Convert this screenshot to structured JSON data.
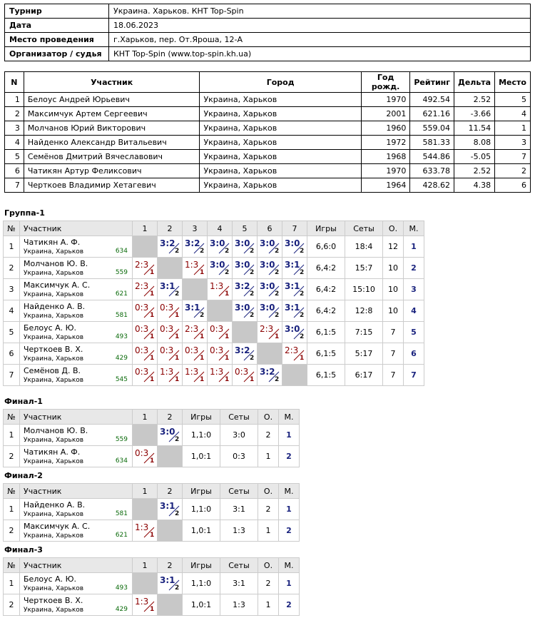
{
  "info": [
    {
      "label": "Турнир",
      "value": "Украина. Харьков. КНТ Top-Spin"
    },
    {
      "label": "Дата",
      "value": "18.06.2023"
    },
    {
      "label": "Место проведения",
      "value": "г.Харьков, пер. От.Яроша, 12-А"
    },
    {
      "label": "Организатор / судья",
      "value": "КНТ Top-Spin (www.top-spin.kh.ua)"
    }
  ],
  "participants": {
    "headers": [
      "N",
      "Участник",
      "Город",
      "Год рожд.",
      "Рейтинг",
      "Дельта",
      "Место"
    ],
    "rows": [
      [
        "1",
        "Белоус Андрей Юрьевич",
        "Украина, Харьков",
        "1970",
        "492.54",
        "2.52",
        "5"
      ],
      [
        "2",
        "Максимчук Артем Сергеевич",
        "Украина, Харьков",
        "2001",
        "621.16",
        "-3.66",
        "4"
      ],
      [
        "3",
        "Молчанов Юрий Викторович",
        "Украина, Харьков",
        "1960",
        "559.04",
        "11.54",
        "1"
      ],
      [
        "4",
        "Найденко Александр Витальевич",
        "Украина, Харьков",
        "1972",
        "581.33",
        "8.08",
        "3"
      ],
      [
        "5",
        "Семёнов Дмитрий Вячеславович",
        "Украина, Харьков",
        "1968",
        "544.86",
        "-5.05",
        "7"
      ],
      [
        "6",
        "Чатикян Артур Феликсович",
        "Украина, Харьков",
        "1970",
        "633.78",
        "2.52",
        "2"
      ],
      [
        "7",
        "Черткоев Владимир Хетагевич",
        "Украина, Харьков",
        "1964",
        "428.62",
        "4.38",
        "6"
      ]
    ]
  },
  "groups": [
    {
      "title": "Группа-1",
      "headers": {
        "no": "№",
        "name": "Участник",
        "games": "Игры",
        "sets": "Сеты",
        "points": "О.",
        "place": "М."
      },
      "rows": [
        {
          "no": "1",
          "name": "Чатикян А. Ф.",
          "city": "Украина, Харьков",
          "rating": "634",
          "cells": [
            null,
            {
              "s": "3:2",
              "p": "2",
              "w": true
            },
            {
              "s": "3:2",
              "p": "2",
              "w": true
            },
            {
              "s": "3:0",
              "p": "2",
              "w": true
            },
            {
              "s": "3:0",
              "p": "2",
              "w": true
            },
            {
              "s": "3:0",
              "p": "2",
              "w": true
            },
            {
              "s": "3:0",
              "p": "2",
              "w": true
            }
          ],
          "games": "6,6:0",
          "sets": "18:4",
          "points": "12",
          "place": "1"
        },
        {
          "no": "2",
          "name": "Молчанов Ю. В.",
          "city": "Украина, Харьков",
          "rating": "559",
          "cells": [
            {
              "s": "2:3",
              "p": "1",
              "w": false
            },
            null,
            {
              "s": "1:3",
              "p": "1",
              "w": false
            },
            {
              "s": "3:0",
              "p": "2",
              "w": true
            },
            {
              "s": "3:0",
              "p": "2",
              "w": true
            },
            {
              "s": "3:0",
              "p": "2",
              "w": true
            },
            {
              "s": "3:1",
              "p": "2",
              "w": true
            }
          ],
          "games": "6,4:2",
          "sets": "15:7",
          "points": "10",
          "place": "2"
        },
        {
          "no": "3",
          "name": "Максимчук А. С.",
          "city": "Украина, Харьков",
          "rating": "621",
          "cells": [
            {
              "s": "2:3",
              "p": "1",
              "w": false
            },
            {
              "s": "3:1",
              "p": "2",
              "w": true
            },
            null,
            {
              "s": "1:3",
              "p": "1",
              "w": false
            },
            {
              "s": "3:2",
              "p": "2",
              "w": true
            },
            {
              "s": "3:0",
              "p": "2",
              "w": true
            },
            {
              "s": "3:1",
              "p": "2",
              "w": true
            }
          ],
          "games": "6,4:2",
          "sets": "15:10",
          "points": "10",
          "place": "3"
        },
        {
          "no": "4",
          "name": "Найденко А. В.",
          "city": "Украина, Харьков",
          "rating": "581",
          "cells": [
            {
              "s": "0:3",
              "p": "1",
              "w": false
            },
            {
              "s": "0:3",
              "p": "1",
              "w": false
            },
            {
              "s": "3:1",
              "p": "2",
              "w": true
            },
            null,
            {
              "s": "3:0",
              "p": "2",
              "w": true
            },
            {
              "s": "3:0",
              "p": "2",
              "w": true
            },
            {
              "s": "3:1",
              "p": "2",
              "w": true
            }
          ],
          "games": "6,4:2",
          "sets": "12:8",
          "points": "10",
          "place": "4"
        },
        {
          "no": "5",
          "name": "Белоус А. Ю.",
          "city": "Украина, Харьков",
          "rating": "493",
          "cells": [
            {
              "s": "0:3",
              "p": "1",
              "w": false
            },
            {
              "s": "0:3",
              "p": "1",
              "w": false
            },
            {
              "s": "2:3",
              "p": "1",
              "w": false
            },
            {
              "s": "0:3",
              "p": "1",
              "w": false
            },
            null,
            {
              "s": "2:3",
              "p": "1",
              "w": false
            },
            {
              "s": "3:0",
              "p": "2",
              "w": true
            }
          ],
          "games": "6,1:5",
          "sets": "7:15",
          "points": "7",
          "place": "5"
        },
        {
          "no": "6",
          "name": "Черткоев В. Х.",
          "city": "Украина, Харьков",
          "rating": "429",
          "cells": [
            {
              "s": "0:3",
              "p": "1",
              "w": false
            },
            {
              "s": "0:3",
              "p": "1",
              "w": false
            },
            {
              "s": "0:3",
              "p": "1",
              "w": false
            },
            {
              "s": "0:3",
              "p": "1",
              "w": false
            },
            {
              "s": "3:2",
              "p": "2",
              "w": true
            },
            null,
            {
              "s": "2:3",
              "p": "1",
              "w": false
            }
          ],
          "games": "6,1:5",
          "sets": "5:17",
          "points": "7",
          "place": "6"
        },
        {
          "no": "7",
          "name": "Семёнов Д. В.",
          "city": "Украина, Харьков",
          "rating": "545",
          "cells": [
            {
              "s": "0:3",
              "p": "1",
              "w": false
            },
            {
              "s": "1:3",
              "p": "1",
              "w": false
            },
            {
              "s": "1:3",
              "p": "1",
              "w": false
            },
            {
              "s": "1:3",
              "p": "1",
              "w": false
            },
            {
              "s": "0:3",
              "p": "1",
              "w": false
            },
            {
              "s": "3:2",
              "p": "2",
              "w": true
            },
            null
          ],
          "games": "6,1:5",
          "sets": "6:17",
          "points": "7",
          "place": "7"
        }
      ]
    },
    {
      "title": "Финал-1",
      "headers": {
        "no": "№",
        "name": "Участник",
        "games": "Игры",
        "sets": "Сеты",
        "points": "О.",
        "place": "М."
      },
      "rows": [
        {
          "no": "1",
          "name": "Молчанов Ю. В.",
          "city": "Украина, Харьков",
          "rating": "559",
          "cells": [
            null,
            {
              "s": "3:0",
              "p": "2",
              "w": true
            }
          ],
          "games": "1,1:0",
          "sets": "3:0",
          "points": "2",
          "place": "1"
        },
        {
          "no": "2",
          "name": "Чатикян А. Ф.",
          "city": "Украина, Харьков",
          "rating": "634",
          "cells": [
            {
              "s": "0:3",
              "p": "1",
              "w": false
            },
            null
          ],
          "games": "1,0:1",
          "sets": "0:3",
          "points": "1",
          "place": "2"
        }
      ]
    },
    {
      "title": "Финал-2",
      "headers": {
        "no": "№",
        "name": "Участник",
        "games": "Игры",
        "sets": "Сеты",
        "points": "О.",
        "place": "М."
      },
      "rows": [
        {
          "no": "1",
          "name": "Найденко А. В.",
          "city": "Украина, Харьков",
          "rating": "581",
          "cells": [
            null,
            {
              "s": "3:1",
              "p": "2",
              "w": true
            }
          ],
          "games": "1,1:0",
          "sets": "3:1",
          "points": "2",
          "place": "1"
        },
        {
          "no": "2",
          "name": "Максимчук А. С.",
          "city": "Украина, Харьков",
          "rating": "621",
          "cells": [
            {
              "s": "1:3",
              "p": "1",
              "w": false
            },
            null
          ],
          "games": "1,0:1",
          "sets": "1:3",
          "points": "1",
          "place": "2"
        }
      ]
    },
    {
      "title": "Финал-3",
      "headers": {
        "no": "№",
        "name": "Участник",
        "games": "Игры",
        "sets": "Сеты",
        "points": "О.",
        "place": "М."
      },
      "rows": [
        {
          "no": "1",
          "name": "Белоус А. Ю.",
          "city": "Украина, Харьков",
          "rating": "493",
          "cells": [
            null,
            {
              "s": "3:1",
              "p": "2",
              "w": true
            }
          ],
          "games": "1,1:0",
          "sets": "3:1",
          "points": "2",
          "place": "1"
        },
        {
          "no": "2",
          "name": "Черткоев В. Х.",
          "city": "Украина, Харьков",
          "rating": "429",
          "cells": [
            {
              "s": "1:3",
              "p": "1",
              "w": false
            },
            null
          ],
          "games": "1,0:1",
          "sets": "1:3",
          "points": "1",
          "place": "2"
        }
      ]
    }
  ]
}
